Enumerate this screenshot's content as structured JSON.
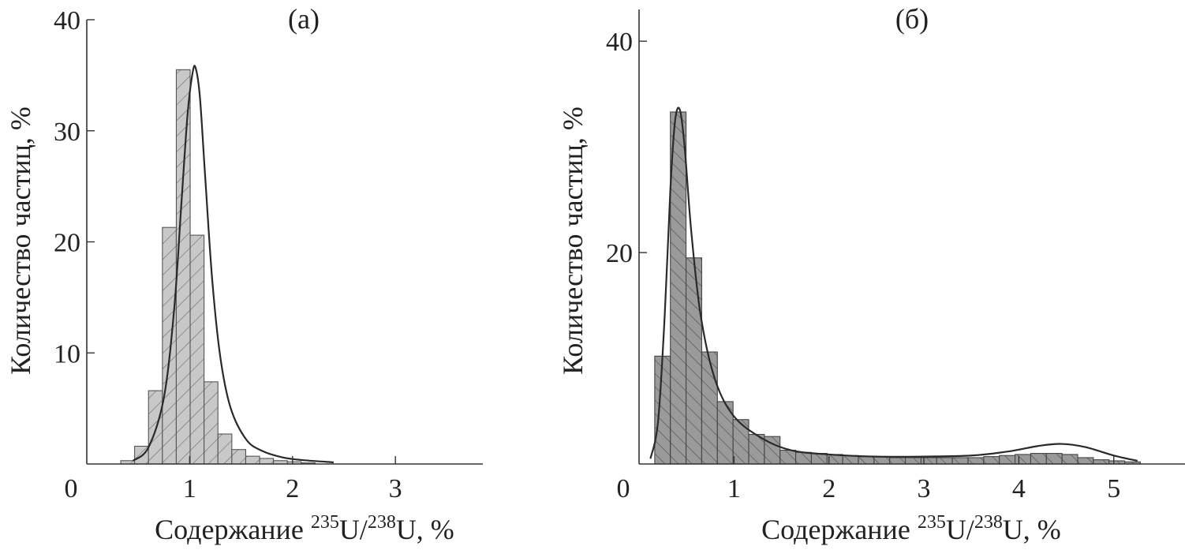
{
  "chart_data": [
    {
      "type": "bar",
      "panel_label": "(a)",
      "xlabel_prefix": "Содержание ",
      "xlabel_sup1": "235",
      "xlabel_mid": "U/",
      "xlabel_sup2": "238",
      "xlabel_suffix": "U, %",
      "ylabel": "Количество частиц, %",
      "xlim": [
        0,
        3.85
      ],
      "ylim": [
        0,
        40
      ],
      "xticks": [
        1,
        2,
        3
      ],
      "yticks": [
        10,
        20,
        30,
        40
      ],
      "origin_label": "0",
      "bin_width": 0.135,
      "bins": [
        {
          "x0": 0.33,
          "value": 0.3
        },
        {
          "x0": 0.465,
          "value": 1.6
        },
        {
          "x0": 0.6,
          "value": 6.6
        },
        {
          "x0": 0.735,
          "value": 21.3
        },
        {
          "x0": 0.87,
          "value": 35.5
        },
        {
          "x0": 1.005,
          "value": 20.6
        },
        {
          "x0": 1.14,
          "value": 7.4
        },
        {
          "x0": 1.275,
          "value": 2.7
        },
        {
          "x0": 1.41,
          "value": 1.3
        },
        {
          "x0": 1.545,
          "value": 0.7
        },
        {
          "x0": 1.68,
          "value": 0.5
        },
        {
          "x0": 1.815,
          "value": 0.3
        },
        {
          "x0": 1.95,
          "value": 0.2
        },
        {
          "x0": 2.085,
          "value": 0.1
        }
      ],
      "fit_curve": {
        "x": [
          0.45,
          0.6,
          0.75,
          0.85,
          0.92,
          0.98,
          1.03,
          1.06,
          1.1,
          1.15,
          1.22,
          1.3,
          1.4,
          1.55,
          1.7,
          1.9,
          2.1,
          2.4
        ],
        "y": [
          0.3,
          1.5,
          6.0,
          14.0,
          23.5,
          31.5,
          35.3,
          35.6,
          33.0,
          26.0,
          16.5,
          9.5,
          5.0,
          2.2,
          1.2,
          0.6,
          0.35,
          0.15
        ]
      }
    },
    {
      "type": "bar",
      "panel_label": "(б)",
      "xlabel_prefix": "Содержание ",
      "xlabel_sup1": "235",
      "xlabel_mid": "U/",
      "xlabel_sup2": "238",
      "xlabel_suffix": "U, %",
      "ylabel": "Количество частиц, %",
      "xlim": [
        0,
        5.75
      ],
      "ylim": [
        0,
        43
      ],
      "xticks": [
        1,
        2,
        3,
        4,
        5
      ],
      "yticks": [
        20,
        40
      ],
      "origin_label": "0",
      "bin_width": 0.165,
      "bins": [
        {
          "x0": 0.165,
          "value": 10.2
        },
        {
          "x0": 0.33,
          "value": 33.3
        },
        {
          "x0": 0.495,
          "value": 19.5
        },
        {
          "x0": 0.66,
          "value": 10.6
        },
        {
          "x0": 0.825,
          "value": 5.9
        },
        {
          "x0": 0.99,
          "value": 4.2
        },
        {
          "x0": 1.155,
          "value": 2.8
        },
        {
          "x0": 1.32,
          "value": 2.6
        },
        {
          "x0": 1.485,
          "value": 1.3
        },
        {
          "x0": 1.65,
          "value": 1.1
        },
        {
          "x0": 1.815,
          "value": 1.0
        },
        {
          "x0": 1.98,
          "value": 0.9
        },
        {
          "x0": 2.145,
          "value": 0.8
        },
        {
          "x0": 2.31,
          "value": 0.7
        },
        {
          "x0": 2.475,
          "value": 0.7
        },
        {
          "x0": 2.64,
          "value": 0.6
        },
        {
          "x0": 2.805,
          "value": 0.6
        },
        {
          "x0": 2.97,
          "value": 0.6
        },
        {
          "x0": 3.135,
          "value": 0.6
        },
        {
          "x0": 3.3,
          "value": 0.6
        },
        {
          "x0": 3.465,
          "value": 0.6
        },
        {
          "x0": 3.63,
          "value": 0.7
        },
        {
          "x0": 3.795,
          "value": 0.8
        },
        {
          "x0": 3.96,
          "value": 0.9
        },
        {
          "x0": 4.125,
          "value": 1.0
        },
        {
          "x0": 4.29,
          "value": 1.0
        },
        {
          "x0": 4.455,
          "value": 0.9
        },
        {
          "x0": 4.62,
          "value": 0.6
        },
        {
          "x0": 4.785,
          "value": 0.4
        },
        {
          "x0": 4.95,
          "value": 0.3
        },
        {
          "x0": 5.115,
          "value": 0.2
        }
      ],
      "fit_curve": {
        "x": [
          0.12,
          0.2,
          0.27,
          0.33,
          0.38,
          0.43,
          0.48,
          0.55,
          0.65,
          0.8,
          1.0,
          1.3,
          1.6,
          2.0,
          2.5,
          3.0,
          3.5,
          3.9,
          4.2,
          4.45,
          4.7,
          5.0,
          5.25
        ],
        "y": [
          0.5,
          4.0,
          14.0,
          26.0,
          32.5,
          33.5,
          30.0,
          22.0,
          14.0,
          8.0,
          4.5,
          2.4,
          1.3,
          0.9,
          0.7,
          0.7,
          0.8,
          1.2,
          1.7,
          1.9,
          1.6,
          0.8,
          0.3
        ]
      }
    }
  ]
}
